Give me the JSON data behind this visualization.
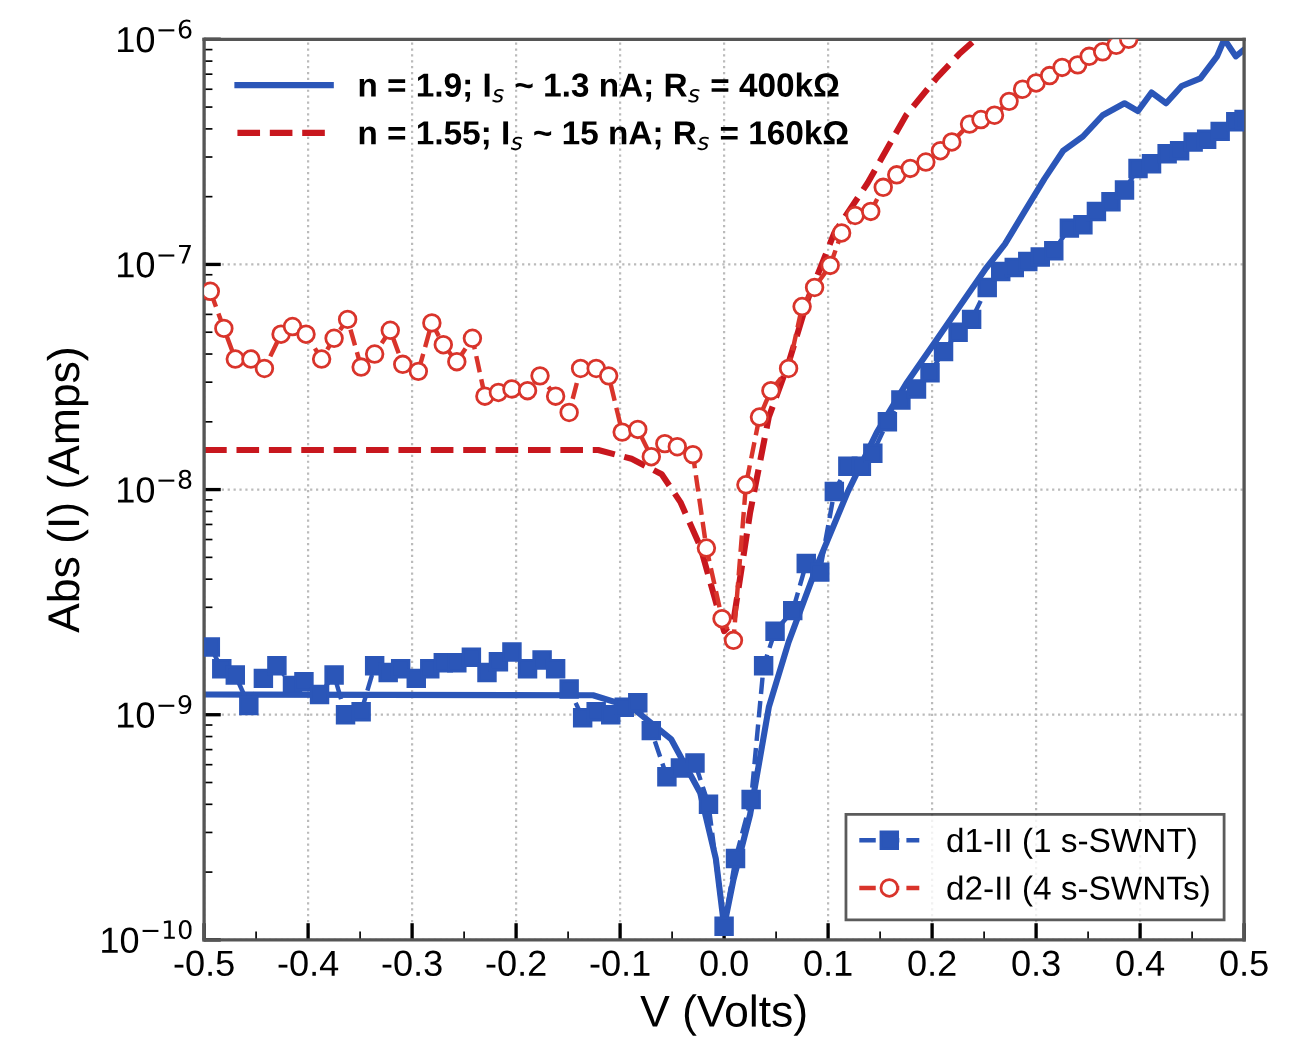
{
  "chart_data": {
    "type": "line",
    "xlabel": "V (Volts)",
    "ylabel": "Abs (I) (Amps)",
    "log": "y",
    "xlim": [
      -0.5,
      0.5
    ],
    "ylim": [
      1e-10,
      1e-06
    ],
    "xticks": [
      {
        "value": -0.5,
        "label": "-0.5"
      },
      {
        "value": -0.4,
        "label": "-0.4"
      },
      {
        "value": -0.3,
        "label": "-0.3"
      },
      {
        "value": -0.2,
        "label": "-0.2"
      },
      {
        "value": -0.1,
        "label": "-0.1"
      },
      {
        "value": 0.0,
        "label": "0.0"
      },
      0.1,
      0.2,
      0.3,
      0.4,
      0.5
    ],
    "yticks": [
      {
        "value": 1e-10,
        "label": "10$^{−10}$"
      },
      {
        "value": 1e-09,
        "label": "10$^{−9}$"
      },
      {
        "value": 1e-08,
        "label": "10$^{−8}$"
      },
      {
        "value": 1e-07,
        "label": "10$^{−7}$"
      },
      {
        "value": 1e-06,
        "label": "10$^{−6}$"
      }
    ],
    "grid": true,
    "legend": [
      "top left",
      "bottom right"
    ],
    "series": [
      {
        "name": "n = 1.9; I$_{s}$ ~ 1.3 nA; R$_{s}$ = 400kΩ",
        "color": "#2b56b8",
        "marker": "none",
        "line_style": "solid",
        "x": [
          -0.5,
          -0.126,
          -0.089,
          -0.051,
          -0.023,
          -0.008,
          0.0,
          0.009,
          0.025,
          0.043,
          0.062,
          0.091,
          0.119,
          0.147,
          0.175,
          0.204,
          0.232,
          0.251,
          0.27,
          0.289,
          0.308,
          0.326,
          0.345,
          0.364,
          0.385,
          0.398,
          0.411,
          0.425,
          0.44,
          0.458,
          0.474,
          0.481,
          0.492,
          0.5
        ],
        "values": [
          1.23e-09,
          1.22e-09,
          1.08e-09,
          7.8e-10,
          4.5e-10,
          2.3e-10,
          1.15e-10,
          1.85e-10,
          3.6e-10,
          1.08e-09,
          2.1e-09,
          4.8e-09,
          9.8e-09,
          1.8e-08,
          2.95e-08,
          4.6e-08,
          7.1e-08,
          9.5e-08,
          1.23e-07,
          1.72e-07,
          2.4e-07,
          3.2e-07,
          3.7e-07,
          4.6e-07,
          5.2e-07,
          4.8e-07,
          5.8e-07,
          5.2e-07,
          6.2e-07,
          6.7e-07,
          8.4e-07,
          1e-06,
          8.4e-07,
          9e-07
        ]
      },
      {
        "name": "n = 1.55; I$_{s}$ ~ 15 nA; R$_{s}$ = 160kΩ",
        "color": "#c8171e",
        "marker": "none",
        "line_style": "dashed",
        "x": [
          -0.5,
          -0.121,
          -0.089,
          -0.06,
          -0.042,
          -0.023,
          -0.009,
          0.0,
          0.009,
          0.025,
          0.043,
          0.062,
          0.081,
          0.106,
          0.138,
          0.175,
          0.204,
          0.226,
          0.242
        ],
        "values": [
          1.5e-08,
          1.5e-08,
          1.37e-08,
          1.17e-08,
          8.8e-09,
          5.6e-09,
          3.3e-09,
          2.35e-09,
          2.6e-09,
          7.9e-09,
          2.1e-08,
          3.65e-08,
          7.1e-08,
          1.38e-07,
          2.3e-07,
          4.6e-07,
          6.7e-07,
          8.6e-07,
          1e-06
        ]
      },
      {
        "name": "d1-II (1 s-SWNT)",
        "color": "#2b56b8",
        "marker": "square",
        "line_style": "dashed",
        "x": [
          -0.494,
          -0.483,
          -0.47,
          -0.457,
          -0.443,
          -0.43,
          -0.415,
          -0.404,
          -0.389,
          -0.375,
          -0.364,
          -0.349,
          -0.336,
          -0.323,
          -0.311,
          -0.296,
          -0.283,
          -0.27,
          -0.257,
          -0.243,
          -0.228,
          -0.217,
          -0.204,
          -0.189,
          -0.175,
          -0.162,
          -0.149,
          -0.136,
          -0.123,
          -0.109,
          -0.096,
          -0.083,
          -0.07,
          -0.055,
          -0.042,
          -0.028,
          -0.015,
          0.0,
          0.011,
          0.026,
          0.038,
          0.049,
          0.066,
          0.079,
          0.092,
          0.106,
          0.119,
          0.132,
          0.143,
          0.157,
          0.17,
          0.185,
          0.198,
          0.211,
          0.225,
          0.238,
          0.253,
          0.266,
          0.279,
          0.292,
          0.304,
          0.317,
          0.332,
          0.345,
          0.358,
          0.372,
          0.385,
          0.398,
          0.411,
          0.426,
          0.438,
          0.451,
          0.464,
          0.477,
          0.492,
          0.5
        ],
        "values": [
          2e-09,
          1.6e-09,
          1.5e-09,
          1.1e-09,
          1.45e-09,
          1.65e-09,
          1.35e-09,
          1.4e-09,
          1.23e-09,
          1.5e-09,
          1e-09,
          1.03e-09,
          1.65e-09,
          1.54e-09,
          1.6e-09,
          1.45e-09,
          1.6e-09,
          1.7e-09,
          1.7e-09,
          1.8e-09,
          1.54e-09,
          1.72e-09,
          1.9e-09,
          1.6e-09,
          1.75e-09,
          1.6e-09,
          1.3e-09,
          9.7e-10,
          1.03e-09,
          1e-09,
          1.08e-09,
          1.13e-09,
          8.5e-10,
          5.3e-10,
          5.8e-10,
          6.1e-10,
          4e-10,
          1.15e-10,
          2.3e-10,
          4.2e-10,
          1.65e-09,
          2.35e-09,
          2.9e-09,
          4.7e-09,
          4.3e-09,
          9.8e-09,
          1.27e-08,
          1.27e-08,
          1.45e-08,
          2e-08,
          2.5e-08,
          2.8e-08,
          3.3e-08,
          4.1e-08,
          5e-08,
          5.7e-08,
          7.9e-08,
          9.3e-08,
          9.7e-08,
          1.03e-07,
          1.08e-07,
          1.15e-07,
          1.45e-07,
          1.5e-07,
          1.72e-07,
          1.9e-07,
          2.14e-07,
          2.67e-07,
          2.8e-07,
          3.1e-07,
          3.2e-07,
          3.5e-07,
          3.6e-07,
          3.9e-07,
          4.3e-07,
          4.4e-07
        ]
      },
      {
        "name": "d2-II (4 s-SWNTs)",
        "color": "#d9342b",
        "marker": "circle",
        "line_style": "dashed",
        "x": [
          -0.494,
          -0.481,
          -0.47,
          -0.455,
          -0.442,
          -0.426,
          -0.415,
          -0.402,
          -0.387,
          -0.375,
          -0.362,
          -0.349,
          -0.336,
          -0.321,
          -0.309,
          -0.294,
          -0.281,
          -0.27,
          -0.257,
          -0.242,
          -0.23,
          -0.217,
          -0.204,
          -0.189,
          -0.177,
          -0.162,
          -0.149,
          -0.138,
          -0.123,
          -0.111,
          -0.098,
          -0.083,
          -0.07,
          -0.057,
          -0.045,
          -0.03,
          -0.017,
          -0.002,
          0.009,
          0.021,
          0.034,
          0.045,
          0.062,
          0.075,
          0.087,
          0.102,
          0.113,
          0.126,
          0.141,
          0.153,
          0.166,
          0.179,
          0.194,
          0.208,
          0.219,
          0.236,
          0.247,
          0.26,
          0.274,
          0.287,
          0.3,
          0.313,
          0.325,
          0.34,
          0.351,
          0.364,
          0.377,
          0.389
        ],
        "values": [
          7.6e-08,
          5.2e-08,
          3.8e-08,
          3.8e-08,
          3.45e-08,
          4.9e-08,
          5.3e-08,
          4.9e-08,
          3.8e-08,
          4.7e-08,
          5.7e-08,
          3.5e-08,
          4e-08,
          5.1e-08,
          3.6e-08,
          3.35e-08,
          5.5e-08,
          4.4e-08,
          3.7e-08,
          4.7e-08,
          2.6e-08,
          2.7e-08,
          2.8e-08,
          2.75e-08,
          3.2e-08,
          2.6e-08,
          2.2e-08,
          3.45e-08,
          3.45e-08,
          3.2e-08,
          1.8e-08,
          1.85e-08,
          1.4e-08,
          1.6e-08,
          1.55e-08,
          1.43e-08,
          5.5e-09,
          2.67e-09,
          2.14e-09,
          1.05e-08,
          2.1e-08,
          2.75e-08,
          3.45e-08,
          6.5e-08,
          7.9e-08,
          9.9e-08,
          1.38e-07,
          1.65e-07,
          1.72e-07,
          2.2e-07,
          2.5e-07,
          2.67e-07,
          2.85e-07,
          3.2e-07,
          3.5e-07,
          4.2e-07,
          4.4e-07,
          4.6e-07,
          5.3e-07,
          6e-07,
          6.4e-07,
          6.9e-07,
          7.5e-07,
          7.7e-07,
          8.4e-07,
          8.8e-07,
          9.4e-07,
          1e-06
        ]
      }
    ]
  }
}
